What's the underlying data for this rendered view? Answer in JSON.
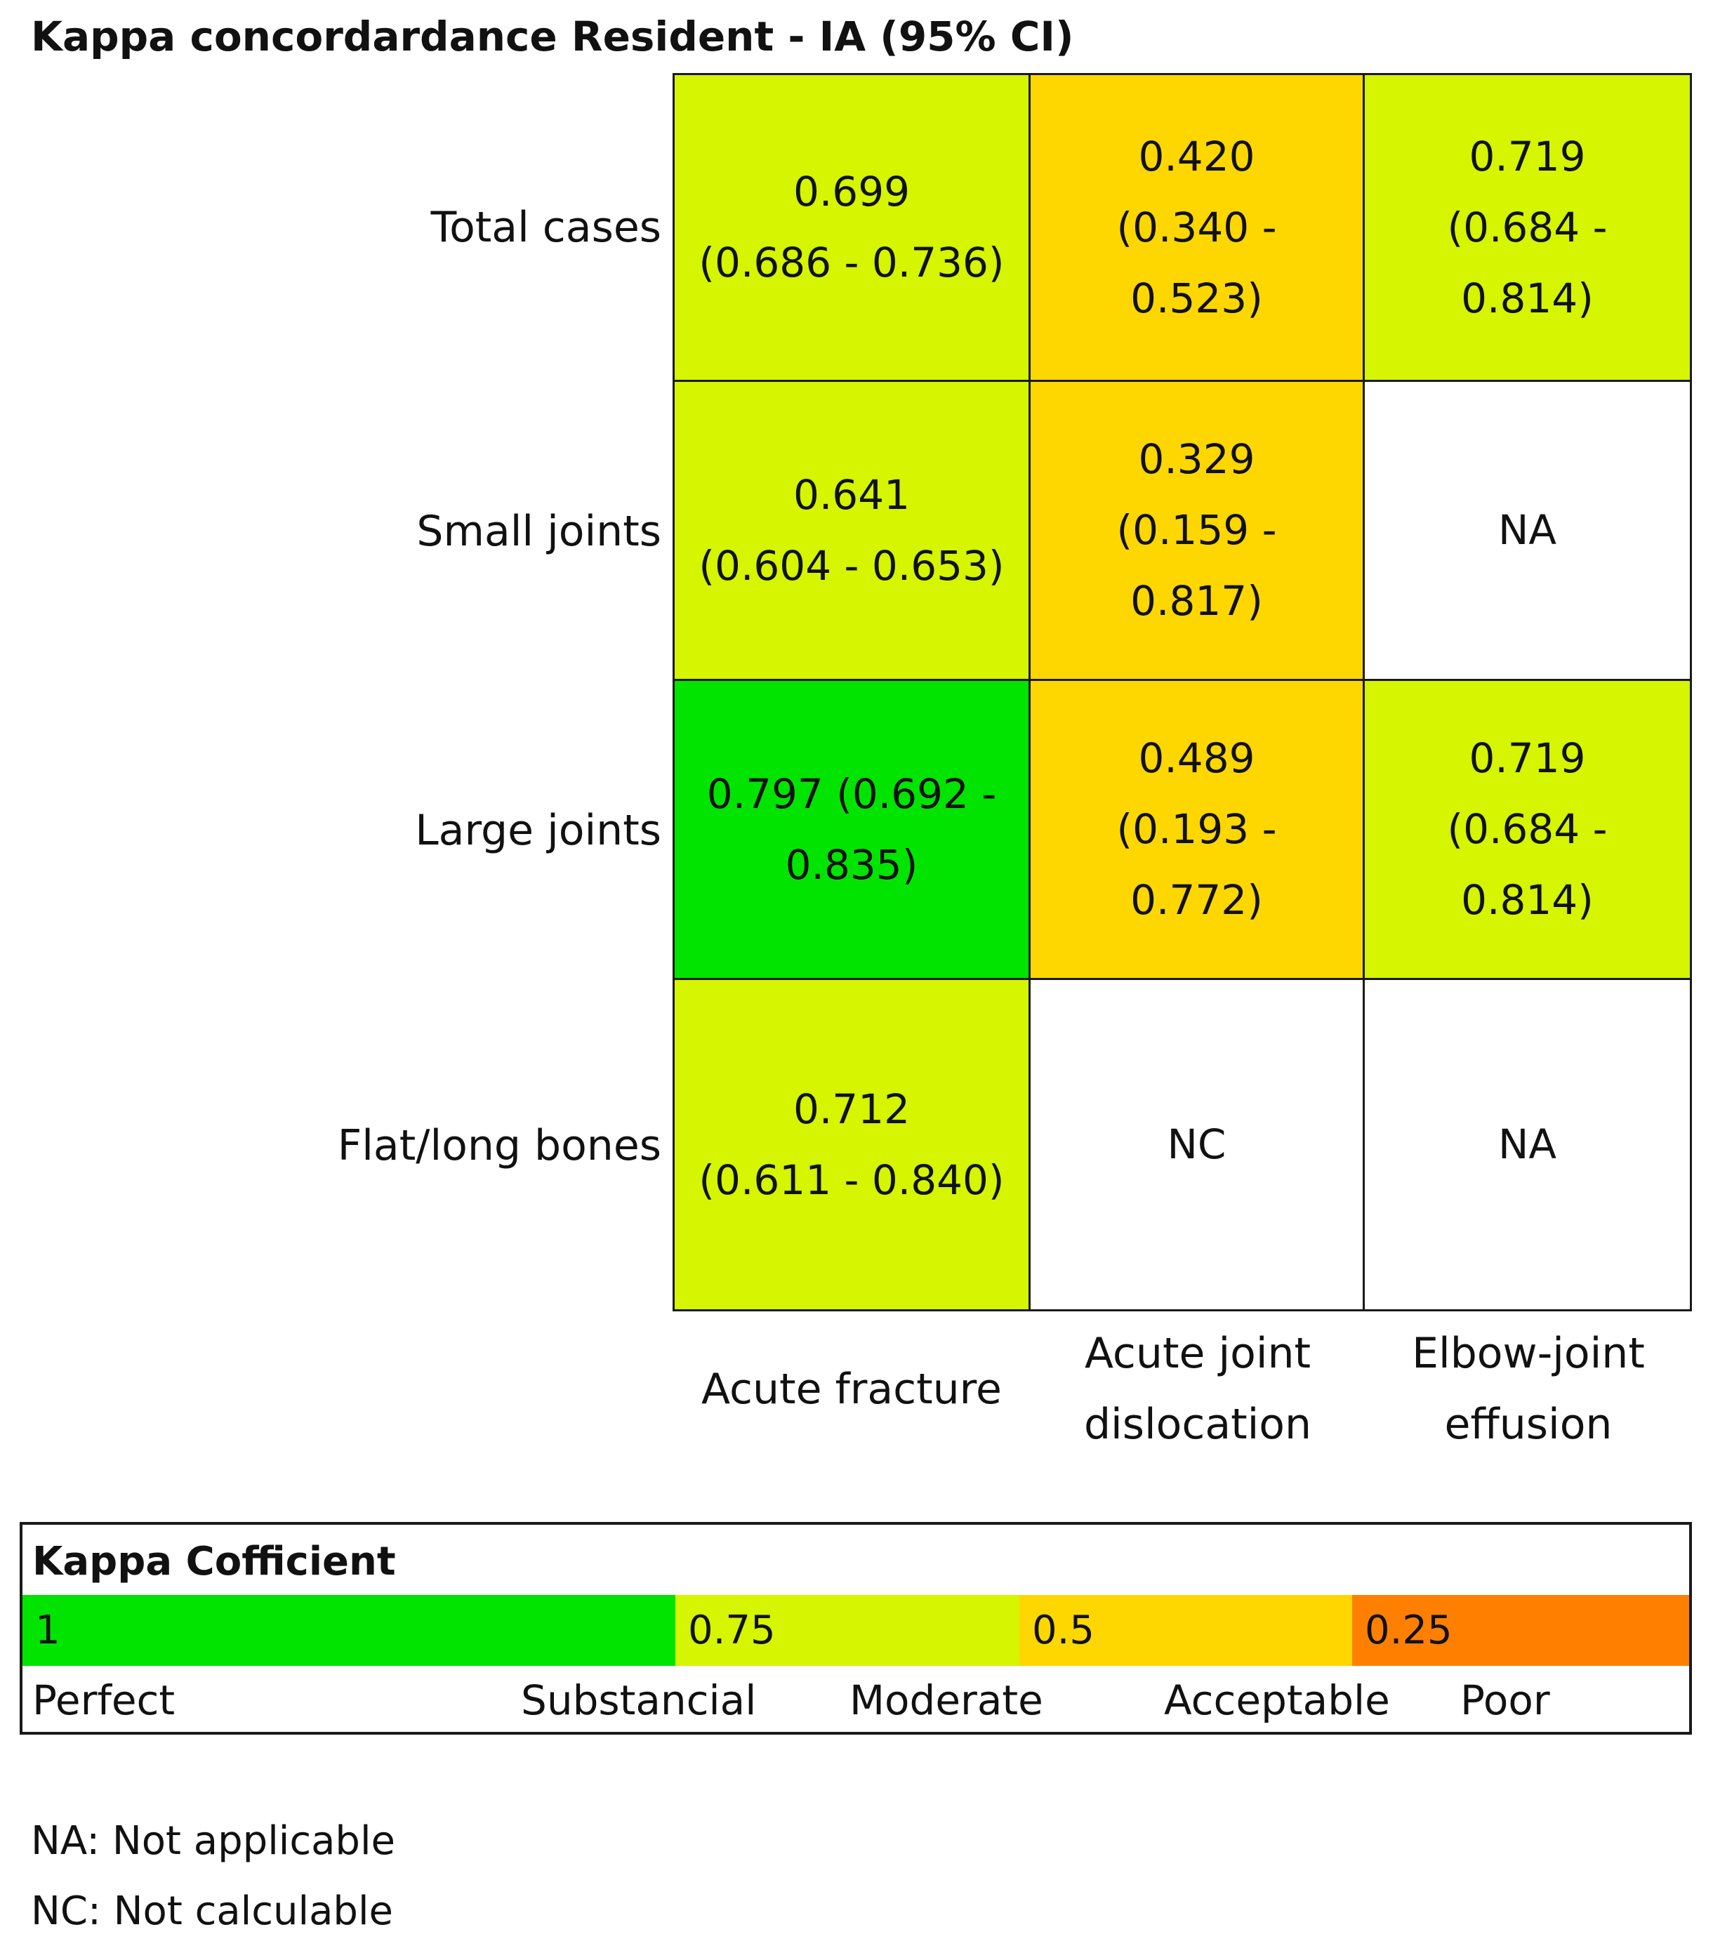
{
  "chart_data": {
    "type": "heatmap",
    "title": "Kappa concordardance Resident - IA (95% CI)",
    "rows": [
      "Total cases",
      "Small joints",
      "Large joints",
      "Flat/long bones"
    ],
    "columns": [
      "Acute fracture",
      "Acute joint\ndislocation",
      "Elbow-joint\neffusion"
    ],
    "cells": [
      [
        {
          "text": "0.699\n(0.686 - 0.736)",
          "value": 0.699,
          "ci": [
            0.686,
            0.736
          ],
          "color": "#d5f500"
        },
        {
          "text": "0.420\n(0.340 -\n0.523)",
          "value": 0.42,
          "ci": [
            0.34,
            0.523
          ],
          "color": "#ffd700"
        },
        {
          "text": "0.719\n(0.684 -\n0.814)",
          "value": 0.719,
          "ci": [
            0.684,
            0.814
          ],
          "color": "#d5f500"
        }
      ],
      [
        {
          "text": "0.641\n(0.604 - 0.653)",
          "value": 0.641,
          "ci": [
            0.604,
            0.653
          ],
          "color": "#d5f500"
        },
        {
          "text": "0.329\n(0.159 -\n0.817)",
          "value": 0.329,
          "ci": [
            0.159,
            0.817
          ],
          "color": "#ffd700"
        },
        {
          "text": "NA",
          "value": null,
          "color": "#ffffff"
        }
      ],
      [
        {
          "text": "0.797  (0.692 -\n0.835)",
          "value": 0.797,
          "ci": [
            0.692,
            0.835
          ],
          "color": "#00e400"
        },
        {
          "text": "0.489\n(0.193 -\n0.772)",
          "value": 0.489,
          "ci": [
            0.193,
            0.772
          ],
          "color": "#ffd700"
        },
        {
          "text": "0.719\n(0.684 -\n0.814)",
          "value": 0.719,
          "ci": [
            0.684,
            0.814
          ],
          "color": "#d5f500"
        }
      ],
      [
        {
          "text": "0.712\n(0.611 - 0.840)",
          "value": 0.712,
          "ci": [
            0.611,
            0.84
          ],
          "color": "#d5f500"
        },
        {
          "text": "NC",
          "value": null,
          "color": "#ffffff"
        },
        {
          "text": "NA",
          "value": null,
          "color": "#ffffff"
        }
      ]
    ]
  },
  "legend": {
    "title": "Kappa Cofficient",
    "bands": [
      {
        "label": "1",
        "color": "#00e400"
      },
      {
        "label": "0.75",
        "color": "#d5f500"
      },
      {
        "label": "0.5",
        "color": "#ffd700"
      },
      {
        "label": "0.25",
        "color": "#ff8000"
      }
    ],
    "categories": [
      "Perfect",
      "Substancial",
      "Moderate",
      "Acceptable",
      "Poor"
    ]
  },
  "footnotes": [
    "NA: Not applicable",
    "NC: Not calculable"
  ]
}
